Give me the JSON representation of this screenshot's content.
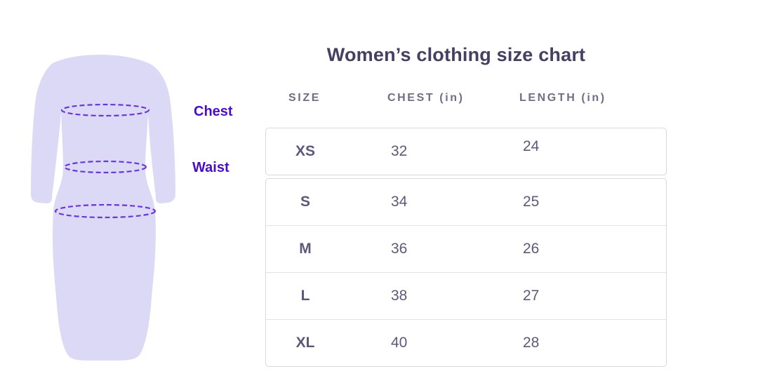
{
  "title": "Women’s clothing size chart",
  "illustration": {
    "chest_label": "Chest",
    "waist_label": "Waist",
    "dress_fill": "#dcd9f6",
    "dash_color": "#6a36d5",
    "label_color": "#4a0dc7"
  },
  "table": {
    "headers": [
      "SIZE",
      "CHEST (in)",
      "LENGTH (in)"
    ],
    "rows": [
      {
        "size": "XS",
        "chest": "32",
        "length": "24"
      },
      {
        "size": "S",
        "chest": "34",
        "length": "25"
      },
      {
        "size": "M",
        "chest": "36",
        "length": "26"
      },
      {
        "size": "L",
        "chest": "38",
        "length": "27"
      },
      {
        "size": "XL",
        "chest": "40",
        "length": "28"
      }
    ]
  },
  "colors": {
    "title_text": "#454061",
    "header_text": "#716d85",
    "cell_text": "#5d5977",
    "border": "#d9d8df",
    "background": "#ffffff"
  },
  "chart_data": {
    "type": "table",
    "title": "Women’s clothing size chart",
    "columns": [
      "SIZE",
      "CHEST (in)",
      "LENGTH (in)"
    ],
    "rows": [
      [
        "XS",
        32,
        24
      ],
      [
        "S",
        34,
        25
      ],
      [
        "M",
        36,
        26
      ],
      [
        "L",
        38,
        27
      ],
      [
        "XL",
        40,
        28
      ]
    ],
    "annotations": [
      "Chest",
      "Waist"
    ]
  }
}
